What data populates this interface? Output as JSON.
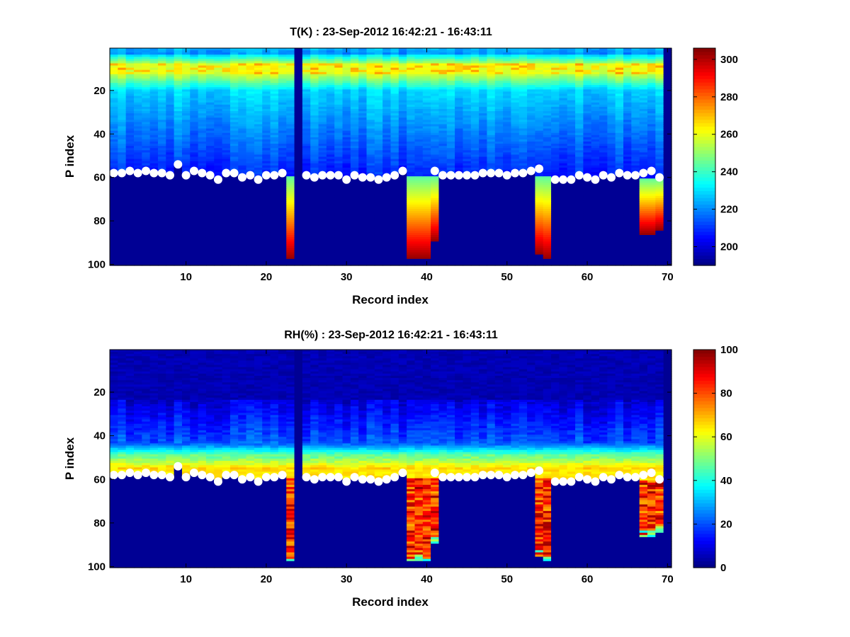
{
  "chart_data": [
    {
      "type": "heatmap",
      "title": "T(K) : 23-Sep-2012 16:42:21 - 16:43:11",
      "xlabel": "Record index",
      "ylabel": "P index",
      "xlim": [
        0.5,
        70.5
      ],
      "ylim": [
        0.5,
        100.5
      ],
      "y_reversed": true,
      "xticks": [
        10,
        20,
        30,
        40,
        50,
        60,
        70
      ],
      "yticks": [
        20,
        40,
        60,
        80,
        100
      ],
      "colormap": "jet",
      "clim": [
        190,
        306
      ],
      "colorbar_ticks": [
        200,
        220,
        240,
        260,
        280,
        300
      ],
      "columns": 70,
      "rows": 100,
      "boundary_markers": [
        58,
        58,
        57,
        58,
        57,
        58,
        58,
        59,
        54,
        59,
        57,
        58,
        59,
        61,
        58,
        58,
        60,
        59,
        61,
        59,
        59,
        58,
        null,
        null,
        59,
        60,
        59,
        59,
        59,
        61,
        59,
        60,
        60,
        61,
        60,
        59,
        57,
        null,
        null,
        null,
        57,
        59,
        59,
        59,
        59,
        59,
        58,
        58,
        58,
        59,
        58,
        58,
        57,
        56,
        null,
        61,
        61,
        61,
        59,
        60,
        61,
        59,
        60,
        58,
        59,
        59,
        58,
        57,
        60,
        null
      ],
      "missing_columns": [
        24,
        70
      ],
      "deep_columns": [
        {
          "index": 23,
          "start": 59,
          "end": 97
        },
        {
          "index": 38,
          "start": 59,
          "end": 97
        },
        {
          "index": 39,
          "start": 59,
          "end": 97
        },
        {
          "index": 40,
          "start": 59,
          "end": 97
        },
        {
          "index": 41,
          "start": 59,
          "end": 89
        },
        {
          "index": 54,
          "start": 59,
          "end": 95
        },
        {
          "index": 55,
          "start": 59,
          "end": 97
        },
        {
          "index": 67,
          "start": 60,
          "end": 86
        },
        {
          "index": 68,
          "start": 60,
          "end": 86
        },
        {
          "index": 69,
          "start": 60,
          "end": 84
        }
      ]
    },
    {
      "type": "heatmap",
      "title": "RH(%) : 23-Sep-2012 16:42:21 - 16:43:11",
      "xlabel": "Record index",
      "ylabel": "P index",
      "xlim": [
        0.5,
        70.5
      ],
      "ylim": [
        0.5,
        100.5
      ],
      "y_reversed": true,
      "xticks": [
        10,
        20,
        30,
        40,
        50,
        60,
        70
      ],
      "yticks": [
        20,
        40,
        60,
        80,
        100
      ],
      "colormap": "jet",
      "clim": [
        0,
        100
      ],
      "colorbar_ticks": [
        0,
        20,
        40,
        60,
        80,
        100
      ],
      "columns": 70,
      "rows": 100,
      "boundary_markers": [
        58,
        58,
        57,
        58,
        57,
        58,
        58,
        59,
        54,
        59,
        57,
        58,
        59,
        61,
        58,
        58,
        60,
        59,
        61,
        59,
        59,
        58,
        null,
        null,
        59,
        60,
        59,
        59,
        59,
        61,
        59,
        60,
        60,
        61,
        60,
        59,
        57,
        null,
        null,
        null,
        57,
        59,
        59,
        59,
        59,
        59,
        58,
        58,
        58,
        59,
        58,
        58,
        57,
        56,
        null,
        61,
        61,
        61,
        59,
        60,
        61,
        59,
        60,
        58,
        59,
        59,
        58,
        57,
        60,
        null
      ],
      "missing_columns": [
        24,
        70
      ],
      "deep_columns": [
        {
          "index": 23,
          "start": 59,
          "end": 97
        },
        {
          "index": 38,
          "start": 59,
          "end": 97
        },
        {
          "index": 39,
          "start": 59,
          "end": 97
        },
        {
          "index": 40,
          "start": 59,
          "end": 97
        },
        {
          "index": 41,
          "start": 59,
          "end": 89
        },
        {
          "index": 54,
          "start": 59,
          "end": 95
        },
        {
          "index": 55,
          "start": 59,
          "end": 97
        },
        {
          "index": 67,
          "start": 60,
          "end": 86
        },
        {
          "index": 68,
          "start": 60,
          "end": 86
        },
        {
          "index": 69,
          "start": 60,
          "end": 84
        }
      ]
    }
  ]
}
